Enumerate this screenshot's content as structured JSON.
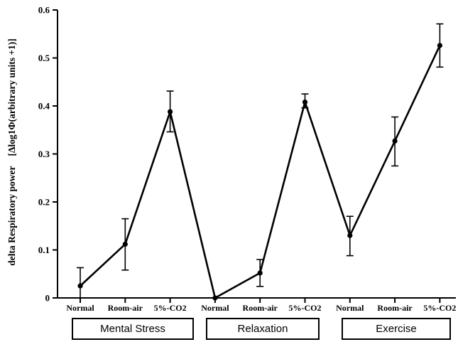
{
  "chart_data": {
    "type": "line",
    "ylabel_main": "delta Respiratory power",
    "ylabel_unit": "[Δlog1Φ(arbitrary units +1)]",
    "xlabel": "",
    "ylim": [
      0,
      0.6
    ],
    "y_ticks": [
      "0",
      "0.1",
      "0.2",
      "0.3",
      "0.4",
      "0.5",
      "0.6"
    ],
    "categories": [
      "Normal",
      "Room-air",
      "5%-CO2",
      "Normal",
      "Room-air",
      "5%-CO2",
      "Normal",
      "Room-air",
      "5%-CO2"
    ],
    "groups": [
      "Mental Stress",
      "Relaxation",
      "Exercise"
    ],
    "series": [
      {
        "values": [
          0.025,
          0.112,
          0.388,
          0.0,
          0.052,
          0.408,
          0.13,
          0.327,
          0.526
        ],
        "error_low": [
          0.025,
          0.054,
          0.042,
          0.0,
          0.028,
          0.012,
          0.042,
          0.052,
          0.045
        ],
        "error_high": [
          0.038,
          0.053,
          0.043,
          0.0,
          0.028,
          0.017,
          0.04,
          0.05,
          0.045
        ]
      }
    ],
    "grid": false,
    "legend": "none"
  }
}
